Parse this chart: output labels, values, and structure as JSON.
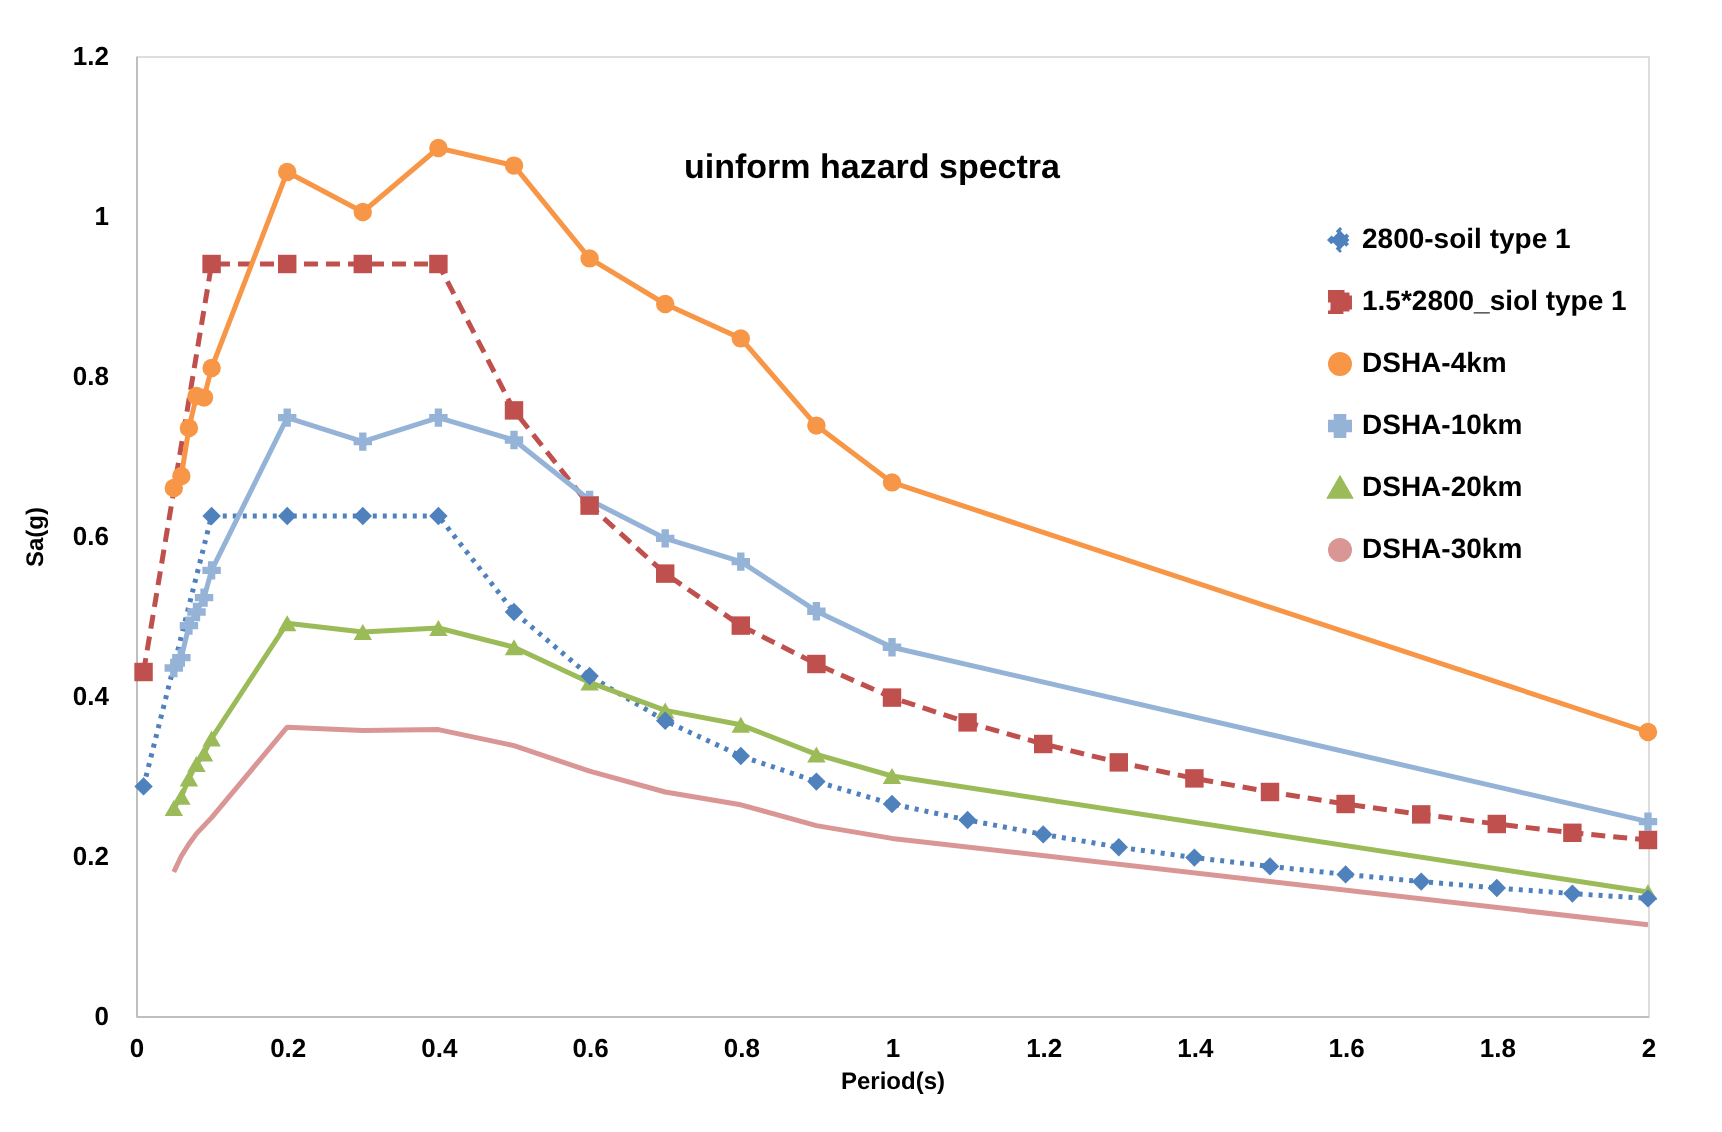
{
  "chart_data": {
    "type": "line",
    "title": "uinform hazard spectra",
    "xlabel": "Period(s)",
    "ylabel": "Sa(g)",
    "xlim": [
      0,
      2
    ],
    "xticks": [
      0,
      0.2,
      0.4,
      0.6,
      0.8,
      1,
      1.2,
      1.4,
      1.6,
      1.8,
      2
    ],
    "ylim": [
      0,
      1.2
    ],
    "yticks": [
      0,
      0.2,
      0.4,
      0.6,
      0.8,
      1,
      1.2
    ],
    "grid": false,
    "legend": "top right",
    "series": [
      {
        "name": "2800-soil type 1",
        "color": "#4f81bd",
        "marker": "diamond",
        "line_style": "dotted",
        "x": [
          0.01,
          0.1,
          0.2,
          0.3,
          0.4,
          0.5,
          0.6,
          0.7,
          0.8,
          0.9,
          1.0,
          1.1,
          1.2,
          1.3,
          1.4,
          1.5,
          1.6,
          1.7,
          1.8,
          1.9,
          2.0
        ],
        "values": [
          0.287,
          0.625,
          0.625,
          0.625,
          0.625,
          0.505,
          0.425,
          0.369,
          0.325,
          0.293,
          0.265,
          0.245,
          0.227,
          0.211,
          0.198,
          0.187,
          0.177,
          0.168,
          0.16,
          0.153,
          0.147
        ]
      },
      {
        "name": "1.5*2800_siol type 1",
        "color": "#c0504d",
        "marker": "square",
        "line_style": "dashed",
        "x": [
          0.01,
          0.1,
          0.2,
          0.3,
          0.4,
          0.5,
          0.6,
          0.7,
          0.8,
          0.9,
          1.0,
          1.1,
          1.2,
          1.3,
          1.4,
          1.5,
          1.6,
          1.7,
          1.8,
          1.9,
          2.0
        ],
        "values": [
          0.43,
          0.94,
          0.94,
          0.94,
          0.94,
          0.757,
          0.638,
          0.553,
          0.488,
          0.44,
          0.398,
          0.367,
          0.34,
          0.317,
          0.297,
          0.28,
          0.265,
          0.252,
          0.24,
          0.229,
          0.22
        ]
      },
      {
        "name": "DSHA-4km",
        "color": "#f79646",
        "marker": "circle",
        "line_style": "solid",
        "x": [
          0.05,
          0.06,
          0.07,
          0.08,
          0.09,
          0.1,
          0.2,
          0.3,
          0.4,
          0.5,
          0.6,
          0.7,
          0.8,
          0.9,
          1.0,
          2.0
        ],
        "values": [
          0.66,
          0.675,
          0.735,
          0.775,
          0.773,
          0.81,
          1.055,
          1.005,
          1.085,
          1.063,
          0.947,
          0.89,
          0.847,
          0.738,
          0.667,
          0.355
        ]
      },
      {
        "name": "DSHA-10km",
        "color": "#95b3d7",
        "marker": "cross",
        "line_style": "solid",
        "x": [
          0.05,
          0.06,
          0.07,
          0.08,
          0.09,
          0.1,
          0.2,
          0.3,
          0.4,
          0.5,
          0.6,
          0.7,
          0.8,
          0.9,
          1.0,
          2.0
        ],
        "values": [
          0.435,
          0.448,
          0.488,
          0.505,
          0.523,
          0.557,
          0.748,
          0.718,
          0.748,
          0.72,
          0.645,
          0.597,
          0.568,
          0.506,
          0.461,
          0.243
        ]
      },
      {
        "name": "DSHA-20km",
        "color": "#9bbb59",
        "marker": "triangle",
        "line_style": "solid",
        "x": [
          0.05,
          0.06,
          0.07,
          0.08,
          0.09,
          0.1,
          0.2,
          0.3,
          0.4,
          0.5,
          0.6,
          0.7,
          0.8,
          0.9,
          1.0,
          2.0
        ],
        "values": [
          0.26,
          0.274,
          0.297,
          0.315,
          0.328,
          0.347,
          0.491,
          0.48,
          0.485,
          0.461,
          0.417,
          0.382,
          0.364,
          0.327,
          0.3,
          0.155
        ]
      },
      {
        "name": "DSHA-30km",
        "color": "#d99694",
        "marker": "none",
        "line_style": "solid",
        "x": [
          0.05,
          0.06,
          0.07,
          0.08,
          0.09,
          0.1,
          0.2,
          0.3,
          0.4,
          0.5,
          0.6,
          0.7,
          0.8,
          0.9,
          1.0,
          2.0
        ],
        "values": [
          0.18,
          0.2,
          0.215,
          0.228,
          0.238,
          0.248,
          0.361,
          0.357,
          0.358,
          0.338,
          0.306,
          0.28,
          0.264,
          0.238,
          0.222,
          0.114
        ]
      }
    ]
  }
}
